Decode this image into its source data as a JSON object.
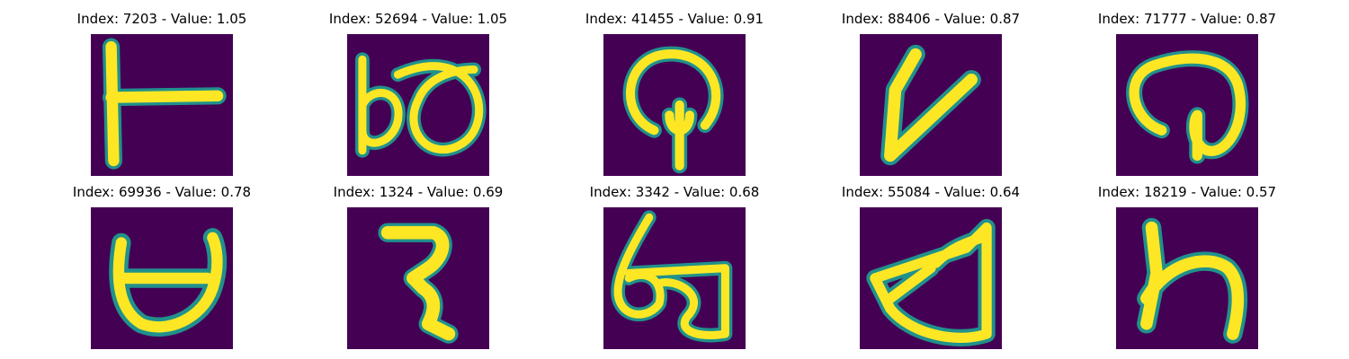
{
  "colors": {
    "background": "#440154",
    "stroke_mid": "#21918c",
    "stroke_bright": "#fde725"
  },
  "panels": [
    {
      "title": "Index: 7203 - Value: 1.05",
      "image_glyph": "T-shape"
    },
    {
      "title": "Index: 52694 - Value: 1.05",
      "image_glyph": "bo-shape"
    },
    {
      "title": "Index: 41455 - Value: 0.91",
      "image_glyph": "spoon-shape"
    },
    {
      "title": "Index: 88406 - Value: 0.87",
      "image_glyph": "v-shape"
    },
    {
      "title": "Index: 71777 - Value: 0.87",
      "image_glyph": "at-shape"
    },
    {
      "title": "Index: 69936 - Value: 0.78",
      "image_glyph": "cup-shape"
    },
    {
      "title": "Index: 1324 - Value: 0.69",
      "image_glyph": "z-shape"
    },
    {
      "title": "Index: 3342 - Value: 0.68",
      "image_glyph": "b-shape"
    },
    {
      "title": "Index: 55084 - Value: 0.64",
      "image_glyph": "d-shape"
    },
    {
      "title": "Index: 18219 - Value: 0.57",
      "image_glyph": "h-shape"
    }
  ]
}
